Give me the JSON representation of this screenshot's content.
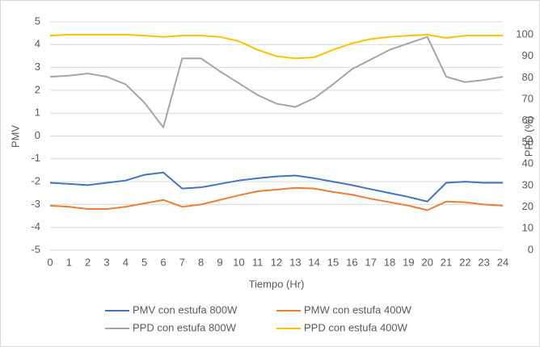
{
  "chart_data": {
    "type": "line",
    "x_label": "Tiempo (Hr)",
    "y_label": "PMV",
    "y2_label": "PPD (%)",
    "x": [
      0,
      1,
      2,
      3,
      4,
      5,
      6,
      7,
      8,
      9,
      10,
      11,
      12,
      13,
      14,
      15,
      16,
      17,
      18,
      19,
      20,
      21,
      22,
      23,
      24
    ],
    "xlim": [
      0,
      24
    ],
    "xticks": [
      0,
      1,
      2,
      3,
      4,
      5,
      6,
      7,
      8,
      9,
      10,
      11,
      12,
      13,
      14,
      15,
      16,
      17,
      18,
      19,
      20,
      21,
      22,
      23,
      24
    ],
    "ylim": [
      -5,
      5
    ],
    "yticks": [
      -5,
      -4,
      -3,
      -2,
      -1,
      0,
      1,
      2,
      3,
      4,
      5
    ],
    "y2lim": [
      0,
      106
    ],
    "y2ticks": [
      0,
      10,
      20,
      30,
      40,
      50,
      60,
      70,
      80,
      90,
      100
    ],
    "grid": true,
    "legend": "bottom",
    "series": [
      {
        "name": "PMV con estufa 800W",
        "color": "#4472c4",
        "axis": "y",
        "values": [
          -2.05,
          -2.1,
          -2.15,
          -2.05,
          -1.95,
          -1.7,
          -1.6,
          -2.3,
          -2.25,
          -2.1,
          -1.95,
          -1.85,
          -1.77,
          -1.73,
          -1.85,
          -2.0,
          -2.15,
          -2.33,
          -2.5,
          -2.67,
          -2.87,
          -2.05,
          -2.0,
          -2.05,
          -2.05
        ]
      },
      {
        "name": "PMW con estufa 400W",
        "color": "#ed7d31",
        "axis": "y",
        "values": [
          -3.05,
          -3.1,
          -3.2,
          -3.2,
          -3.1,
          -2.95,
          -2.8,
          -3.1,
          -3.0,
          -2.8,
          -2.6,
          -2.42,
          -2.35,
          -2.27,
          -2.3,
          -2.45,
          -2.57,
          -2.75,
          -2.9,
          -3.05,
          -3.25,
          -2.87,
          -2.9,
          -3.0,
          -3.05
        ]
      },
      {
        "name": "PPD con estufa 800W",
        "color": "#a5a5a5",
        "axis": "y2",
        "values": [
          80.5,
          81,
          82,
          80.5,
          77,
          68.5,
          57,
          89,
          89,
          83,
          77.5,
          72,
          68,
          66.5,
          70.5,
          77,
          84,
          88.5,
          93,
          96,
          99,
          80.5,
          78,
          79,
          80.5
        ]
      },
      {
        "name": "PPD con estufa 400W",
        "color": "#ffc000",
        "axis": "y2",
        "values": [
          99.6,
          100,
          100,
          100,
          100,
          99.6,
          99,
          99.6,
          99.6,
          99,
          97,
          93,
          90,
          89,
          89.5,
          93,
          96,
          98,
          99,
          99.6,
          100,
          98.5,
          99.6,
          99.6,
          99.6
        ]
      }
    ]
  }
}
